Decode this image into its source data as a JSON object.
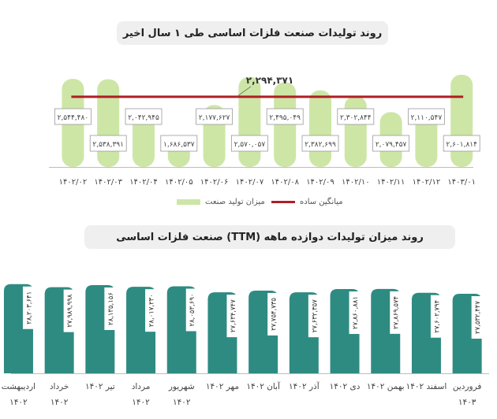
{
  "chart1": {
    "title": "روند تولیدات صنعت فلزات اساسی طی ۱ سال اخیر",
    "avg_label": "۲,۲۹۴,۳۷۱",
    "legend_bar": "میزان تولید صنعت",
    "legend_line": "میانگین ساده",
    "colors": {
      "bar": "#cde6a6",
      "line": "#b01e24"
    }
  },
  "chart2": {
    "title": "روند میزان تولیدات دوازده ماهه (TTM) صنعت فلزات اساسی",
    "colors": {
      "bar": "#2e8b82"
    }
  },
  "chart_data": [
    {
      "type": "bar",
      "title": "روند تولیدات صنعت فلزات اساسی طی ۱ سال اخیر",
      "categories": [
        "۱۴۰۲/۰۲",
        "۱۴۰۲/۰۳",
        "۱۴۰۲/۰۴",
        "۱۴۰۲/۰۵",
        "۱۴۰۲/۰۶",
        "۱۴۰۲/۰۷",
        "۱۴۰۲/۰۸",
        "۱۴۰۲/۰۹",
        "۱۴۰۲/۱۰",
        "۱۴۰۲/۱۱",
        "۱۴۰۲/۱۲",
        "۱۴۰۳/۰۱"
      ],
      "value_labels": [
        "۲,۵۴۴,۴۸۰",
        "۲,۵۳۸,۳۹۱",
        "۲,۰۴۲,۹۴۵",
        "۱,۶۸۶,۵۳۷",
        "۲,۱۷۷,۶۲۷",
        "۲,۵۷۰,۰۵۷",
        "۲,۴۹۵,۰۴۹",
        "۲,۳۸۲,۶۹۹",
        "۲,۳۰۲,۸۴۴",
        "۲,۰۷۹,۴۵۷",
        "۲,۱۱۰,۵۴۷",
        "۲,۶۰۱,۸۱۴"
      ],
      "series": [
        {
          "name": "میزان تولید صنعت",
          "values": [
            2544480,
            2538391,
            2042945,
            1686537,
            2177627,
            2570057,
            2495049,
            2382699,
            2302844,
            2079457,
            2110547,
            2601814
          ]
        },
        {
          "name": "میانگین ساده",
          "values": [
            2294371,
            2294371,
            2294371,
            2294371,
            2294371,
            2294371,
            2294371,
            2294371,
            2294371,
            2294371,
            2294371,
            2294371
          ]
        }
      ],
      "grid": false,
      "legend": "bottom"
    },
    {
      "type": "bar",
      "title": "روند میزان تولیدات دوازده ماهه (TTM) صنعت فلزات اساسی",
      "categories": [
        "فروردین ۱۴۰۳",
        "اسفند ۱۴۰۲",
        "بهمن ۱۴۰۲",
        "دی ۱۴۰۲",
        "آذر ۱۴۰۲",
        "آبان ۱۴۰۲",
        "مهر ۱۴۰۲",
        "شهریور ۱۴۰۲",
        "مرداد ۱۴۰۲",
        "تیر ۱۴۰۲",
        "خرداد ۱۴۰۲",
        "اردیبهشت ۱۴۰۲"
      ],
      "cat_line1": [
        "فروردین",
        "اسفند ۱۴۰۲",
        "بهمن ۱۴۰۲",
        "دی ۱۴۰۲",
        "آذر ۱۴۰۲",
        "آبان ۱۴۰۲",
        "مهر ۱۴۰۲",
        "شهریور",
        "مرداد",
        "تیر ۱۴۰۲",
        "خرداد",
        "اردیبهشت"
      ],
      "cat_line2": [
        "۱۴۰۳",
        "",
        "",
        "",
        "",
        "",
        "",
        "۱۴۰۲",
        "۱۴۰۲",
        "",
        "۱۴۰۲",
        "۱۴۰۲"
      ],
      "value_labels": [
        "۲۷,۵۳۲,۴۴۷",
        "۲۷,۶۰۲,۷۹۴",
        "۲۷,۸۶۹,۵۷۴",
        "۲۷,۸۶۰,۸۸۱",
        "۲۷,۶۳۲,۳۵۷",
        "۲۷,۷۵۴,۷۳۵",
        "۲۷,۶۳۴,۷۴۷",
        "۲۸,۰۵۳,۶۹۰",
        "۲۸,۰۱۷,۲۳۰",
        "۲۸,۱۳۵,۱۵۶",
        "۲۷,۹۸۹,۹۹۸",
        "۲۸,۲۰۳,۶۴۱"
      ],
      "values": [
        27532447,
        27602794,
        27869574,
        27860881,
        27632357,
        27754735,
        27634747,
        28053690,
        28017230,
        28135156,
        27989998,
        28203641
      ],
      "grid": false
    }
  ]
}
